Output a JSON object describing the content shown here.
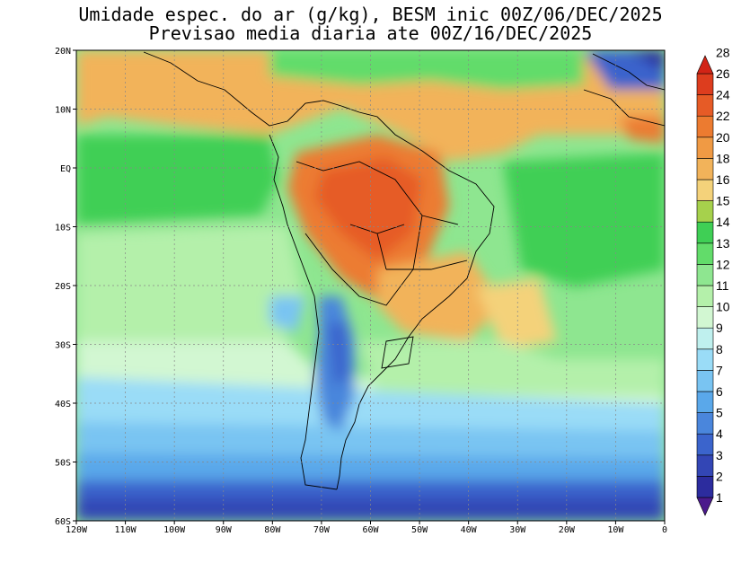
{
  "title": {
    "line1": "Umidade espec. do ar (g/kg), BESM inic 00Z/06/DEC/2025",
    "line2": "Previsao media diaria ate 00Z/16/DEC/2025"
  },
  "map": {
    "lon_range": [
      -120,
      0
    ],
    "lat_range": [
      -60,
      20
    ],
    "lon_ticks": [
      "120W",
      "110W",
      "100W",
      "90W",
      "80W",
      "70W",
      "60W",
      "50W",
      "40W",
      "30W",
      "20W",
      "10W",
      "0"
    ],
    "lat_ticks": [
      "20N",
      "10N",
      "EQ",
      "10S",
      "20S",
      "30S",
      "40S",
      "50S",
      "60S"
    ],
    "gridlines": true
  },
  "colorbar": {
    "labels": [
      "1",
      "2",
      "3",
      "4",
      "5",
      "6",
      "7",
      "8",
      "9",
      "10",
      "11",
      "12",
      "13",
      "14",
      "15",
      "16",
      "18",
      "20",
      "22",
      "24",
      "26",
      "28"
    ],
    "colors": [
      "#4b1a8c",
      "#2c2c9e",
      "#3346b5",
      "#3b64cc",
      "#4a86dc",
      "#5aa8ea",
      "#79c4f2",
      "#9adcf7",
      "#bff0ee",
      "#d2f7d2",
      "#b4f0aa",
      "#8ee690",
      "#62dc6a",
      "#3fcf55",
      "#a6d14c",
      "#f4d27a",
      "#f2b35a",
      "#f09a44",
      "#ec7b30",
      "#e65b26",
      "#dd3d1e",
      "#d22416"
    ]
  }
}
